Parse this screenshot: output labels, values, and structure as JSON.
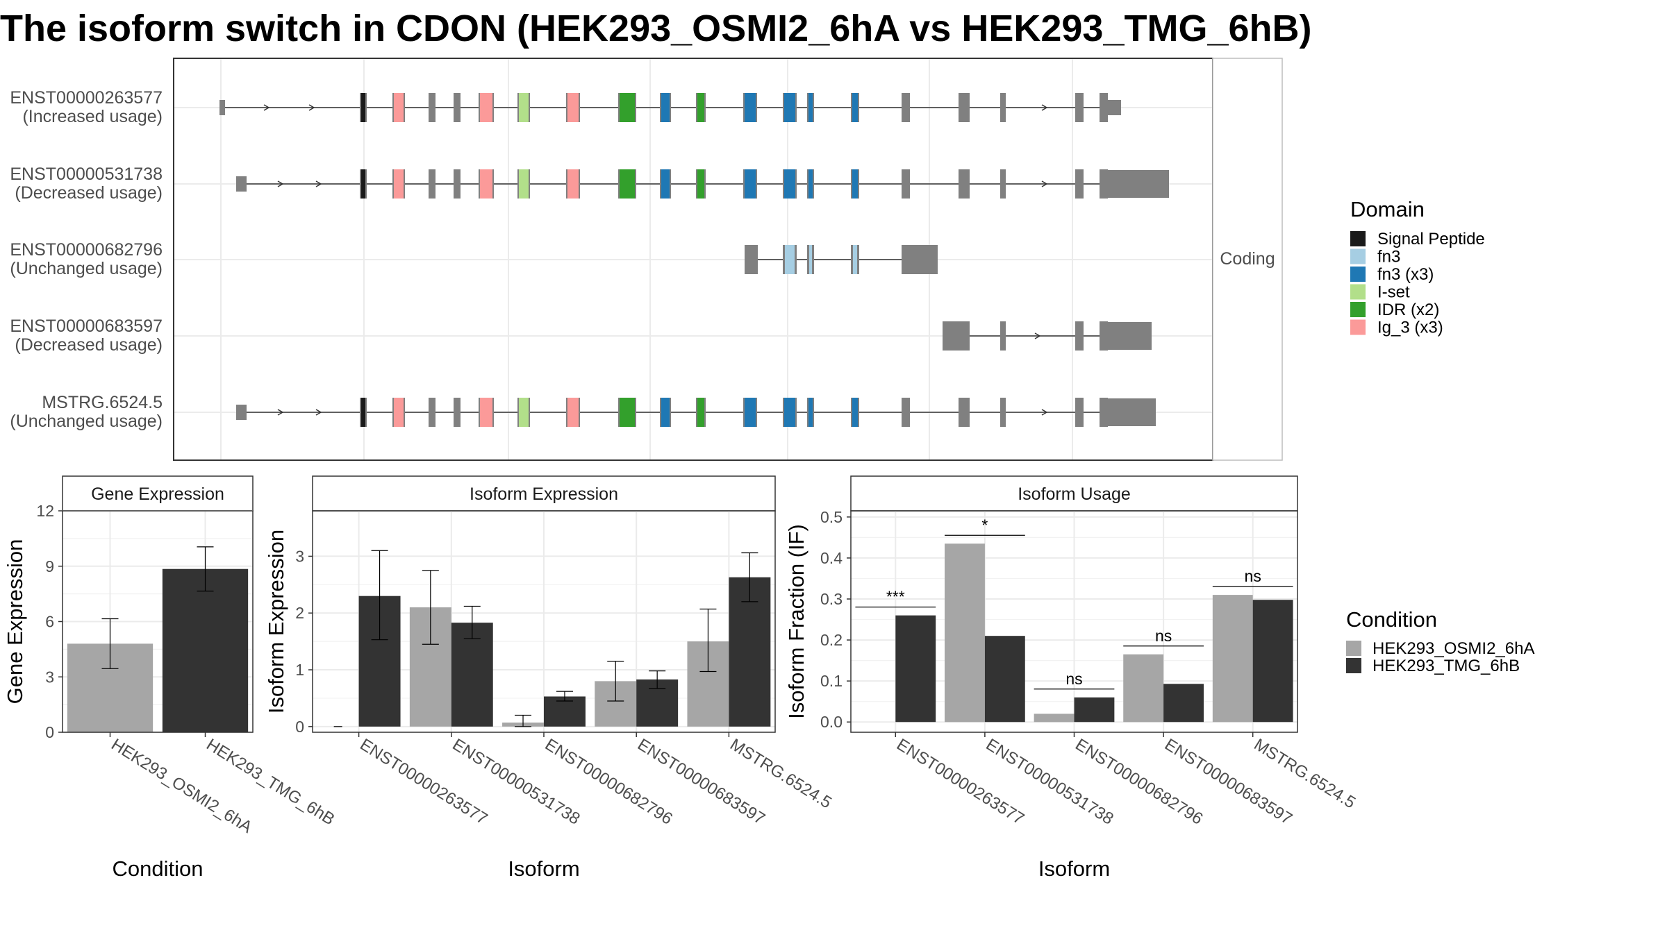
{
  "title": "The isoform switch in CDON (HEK293_OSMI2_6hA vs HEK293_TMG_6hB)",
  "colors": {
    "Signal Peptide": "#1a1a1a",
    "fn3": "#a6cee3",
    "fn3 (x3)": "#1f78b4",
    "I-set": "#b2df8a",
    "IDR (x2)": "#33a02c",
    "Ig_3 (x3)": "#fb9a99",
    "exon": "#808080",
    "condA": "#a6a6a6",
    "condB": "#333333"
  },
  "chart_data": [
    {
      "type": "gene-structure",
      "facet_label": "Coding",
      "transcripts": [
        {
          "id": "ENST00000263577",
          "usage": "(Increased usage)"
        },
        {
          "id": "ENST00000531738",
          "usage": "(Decreased usage)"
        },
        {
          "id": "ENST00000682796",
          "usage": "(Unchanged usage)"
        },
        {
          "id": "ENST00000683597",
          "usage": "(Decreased usage)"
        },
        {
          "id": "MSTRG.6524.5",
          "usage": "(Unchanged usage)"
        }
      ],
      "legend": {
        "title": "Domain",
        "items": [
          "Signal Peptide",
          "fn3",
          "fn3 (x3)",
          "I-set",
          "IDR (x2)",
          "Ig_3 (x3)"
        ]
      }
    },
    {
      "type": "bar",
      "strip": "Gene Expression",
      "xlabel": "Condition",
      "ylabel": "Gene Expression",
      "categories": [
        "HEK293_OSMI2_6hA",
        "HEK293_TMG_6hB"
      ],
      "values": [
        4.8,
        8.85
      ],
      "errors": [
        [
          3.45,
          6.15
        ],
        [
          7.65,
          10.05
        ]
      ],
      "ylim": [
        0,
        12
      ],
      "yticks": [
        0,
        3,
        6,
        9,
        12
      ]
    },
    {
      "type": "bar",
      "strip": "Isoform Expression",
      "xlabel": "Isoform",
      "ylabel": "Isoform Expression",
      "categories": [
        "ENST00000263577",
        "ENST00000531738",
        "ENST00000682796",
        "ENST00000683597",
        "MSTRG.6524.5"
      ],
      "series": [
        {
          "name": "HEK293_OSMI2_6hA",
          "values": [
            0.0,
            2.1,
            0.07,
            0.8,
            1.5
          ],
          "errors": [
            [
              0.0,
              0.0
            ],
            [
              1.45,
              2.75
            ],
            [
              0.0,
              0.2
            ],
            [
              0.45,
              1.15
            ],
            [
              0.97,
              2.07
            ]
          ]
        },
        {
          "name": "HEK293_TMG_6hB",
          "values": [
            2.3,
            1.83,
            0.53,
            0.83,
            2.63
          ],
          "errors": [
            [
              1.53,
              3.1
            ],
            [
              1.55,
              2.12
            ],
            [
              0.45,
              0.62
            ],
            [
              0.67,
              0.98
            ],
            [
              2.2,
              3.06
            ]
          ]
        }
      ],
      "ylim": [
        -0.1,
        3.8
      ],
      "yticks": [
        0,
        1,
        2,
        3
      ]
    },
    {
      "type": "bar",
      "strip": "Isoform Usage",
      "xlabel": "Isoform",
      "ylabel": "Isoform Fraction (IF)",
      "categories": [
        "ENST00000263577",
        "ENST00000531738",
        "ENST00000682796",
        "ENST00000683597",
        "MSTRG.6524.5"
      ],
      "series": [
        {
          "name": "HEK293_OSMI2_6hA",
          "values": [
            0.0,
            0.435,
            0.02,
            0.165,
            0.31
          ]
        },
        {
          "name": "HEK293_TMG_6hB",
          "values": [
            0.26,
            0.21,
            0.06,
            0.093,
            0.298
          ]
        }
      ],
      "significance": [
        "***",
        "*",
        "ns",
        "ns",
        "ns"
      ],
      "ylim": [
        -0.025,
        0.515
      ],
      "yticks": [
        0.0,
        0.1,
        0.2,
        0.3,
        0.4,
        0.5
      ],
      "ytick_labels": [
        "0.0",
        "0.1",
        "0.2",
        "0.3",
        "0.4",
        "0.5"
      ],
      "legend": {
        "title": "Condition",
        "items": [
          "HEK293_OSMI2_6hA",
          "HEK293_TMG_6hB"
        ]
      }
    }
  ]
}
